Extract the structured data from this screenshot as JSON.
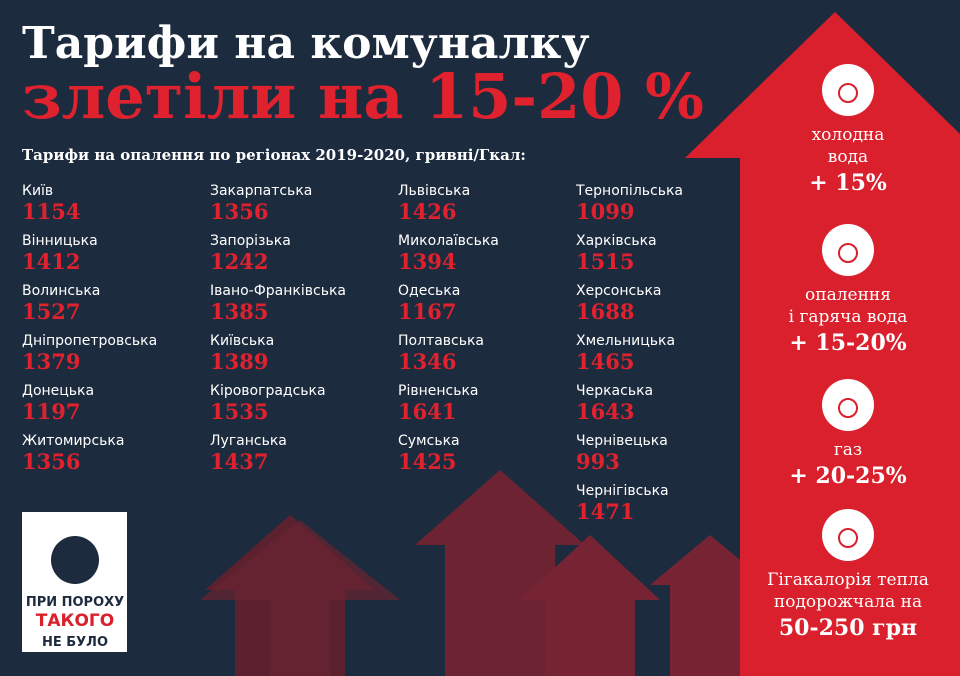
{
  "header": {
    "title": "Тарифи на комуналку",
    "subtitle": "злетіли на 15-20 %"
  },
  "table": {
    "title": "Тарифи на опалення по регіонах 2019-2020, гривні/Гкал:",
    "columns": [
      [
        {
          "name": "Київ",
          "value": 1154
        },
        {
          "name": "Вінницька",
          "value": 1412
        },
        {
          "name": "Волинська",
          "value": 1527
        },
        {
          "name": "Дніпропетровська",
          "value": 1379
        },
        {
          "name": "Донецька",
          "value": 1197
        },
        {
          "name": "Житомирська",
          "value": 1356
        }
      ],
      [
        {
          "name": "Закарпатська",
          "value": 1356
        },
        {
          "name": "Запорізька",
          "value": 1242
        },
        {
          "name": "Івано-Франківська",
          "value": 1385
        },
        {
          "name": "Київська",
          "value": 1389
        },
        {
          "name": "Кіровоградська",
          "value": 1535
        },
        {
          "name": "Луганська",
          "value": 1437
        }
      ],
      [
        {
          "name": "Львівська",
          "value": 1426
        },
        {
          "name": "Миколаївська",
          "value": 1394
        },
        {
          "name": "Одеська",
          "value": 1167
        },
        {
          "name": "Полтавська",
          "value": 1346
        },
        {
          "name": "Рівненська",
          "value": 1641
        },
        {
          "name": "Сумська",
          "value": 1425
        }
      ],
      [
        {
          "name": "Тернопільська",
          "value": 1099
        },
        {
          "name": "Харківська",
          "value": 1515
        },
        {
          "name": "Херсонська",
          "value": 1688
        },
        {
          "name": "Хмельницька",
          "value": 1465
        },
        {
          "name": "Черкаська",
          "value": 1643
        },
        {
          "name": "Чернівецька",
          "value": 993
        },
        {
          "name": "Чернігівська",
          "value": 1471
        }
      ]
    ]
  },
  "sidebar": [
    {
      "label": [
        "холодна",
        "вода"
      ],
      "value": "+ 15%"
    },
    {
      "label": [
        "опалення",
        "і гаряча вода"
      ],
      "value": "+ 15-20%"
    },
    {
      "label": [
        "газ"
      ],
      "value": "+ 20-25%"
    },
    {
      "label": [
        "Гігакалорія тепла",
        "подорожчала на"
      ],
      "value": "50-250 грн"
    }
  ],
  "logo": [
    "ПРИ ПОРОХУ",
    "ТАКОГО",
    "НЕ БУЛО"
  ]
}
